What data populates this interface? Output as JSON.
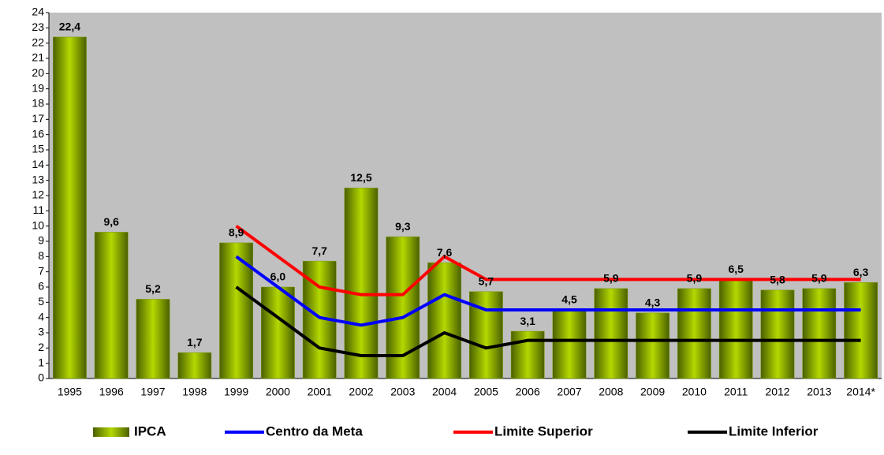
{
  "chart_data": {
    "type": "bar",
    "categories": [
      "1995",
      "1996",
      "1997",
      "1998",
      "1999",
      "2000",
      "2001",
      "2002",
      "2003",
      "2004",
      "2005",
      "2006",
      "2007",
      "2008",
      "2009",
      "2010",
      "2011",
      "2012",
      "2013",
      "2014*"
    ],
    "series": [
      {
        "name": "IPCA",
        "type": "bar",
        "color": "#7a9a00",
        "values": [
          22.4,
          9.6,
          5.2,
          1.7,
          8.9,
          6.0,
          7.7,
          12.5,
          9.3,
          7.6,
          5.7,
          3.1,
          4.5,
          5.9,
          4.3,
          5.9,
          6.5,
          5.8,
          5.9,
          6.3
        ],
        "value_labels": [
          "22,4",
          "9,6",
          "5,2",
          "1,7",
          "8,9",
          "6,0",
          "7,7",
          "12,5",
          "9,3",
          "7,6",
          "5,7",
          "3,1",
          "4,5",
          "5,9",
          "4,3",
          "5,9",
          "6,5",
          "5,8",
          "5,9",
          "6,3"
        ]
      },
      {
        "name": "Centro da Meta",
        "type": "line",
        "color": "#0000ff",
        "values": [
          null,
          null,
          null,
          null,
          8,
          6,
          4,
          3.5,
          4,
          5.5,
          4.5,
          4.5,
          4.5,
          4.5,
          4.5,
          4.5,
          4.5,
          4.5,
          4.5,
          4.5
        ]
      },
      {
        "name": "Limite Superior",
        "type": "line",
        "color": "#ff0000",
        "values": [
          null,
          null,
          null,
          null,
          10,
          8,
          6,
          5.5,
          5.5,
          8,
          6.5,
          6.5,
          6.5,
          6.5,
          6.5,
          6.5,
          6.5,
          6.5,
          6.5,
          6.5
        ]
      },
      {
        "name": "Limite Inferior",
        "type": "line",
        "color": "#000000",
        "values": [
          null,
          null,
          null,
          null,
          6,
          4,
          2,
          1.5,
          1.5,
          3,
          2,
          2.5,
          2.5,
          2.5,
          2.5,
          2.5,
          2.5,
          2.5,
          2.5,
          2.5
        ]
      }
    ],
    "ylim": [
      0,
      24
    ],
    "yticks": [
      0,
      1,
      2,
      3,
      4,
      5,
      6,
      7,
      8,
      9,
      10,
      11,
      12,
      13,
      14,
      15,
      16,
      17,
      18,
      19,
      20,
      21,
      22,
      23,
      24
    ],
    "legend": "bottom"
  }
}
